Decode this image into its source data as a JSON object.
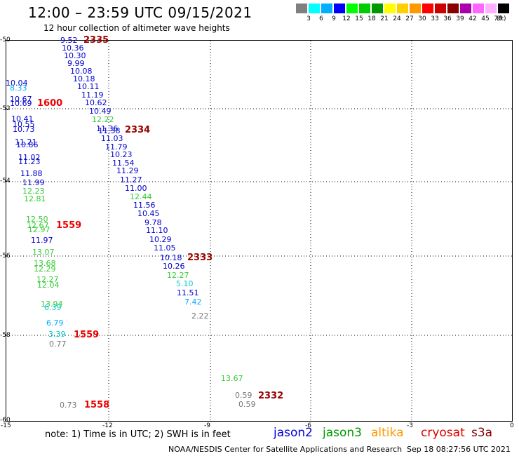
{
  "header": {
    "title": "12:00 – 23:59 UTC 09/15/2021",
    "subtitle": "12 hour collection of altimeter wave heights"
  },
  "colorbar": {
    "unit_label": "(ft)",
    "swatches": [
      {
        "color": "#808080",
        "label": "3"
      },
      {
        "color": "#00ffff",
        "label": "6"
      },
      {
        "color": "#00b0ff",
        "label": "9"
      },
      {
        "color": "#0000ff",
        "label": "12"
      },
      {
        "color": "#00ff00",
        "label": "15"
      },
      {
        "color": "#00cc00",
        "label": "18"
      },
      {
        "color": "#009900",
        "label": "21"
      },
      {
        "color": "#ffff00",
        "label": "24"
      },
      {
        "color": "#ffd000",
        "label": "27"
      },
      {
        "color": "#ff9900",
        "label": "30"
      },
      {
        "color": "#ff0000",
        "label": "33"
      },
      {
        "color": "#cc0000",
        "label": "36"
      },
      {
        "color": "#880000",
        "label": "39"
      },
      {
        "color": "#aa00aa",
        "label": "42"
      },
      {
        "color": "#ff66ff",
        "label": "45"
      },
      {
        "color": "#ffb0ff",
        "label": "70"
      },
      {
        "color": "#000000",
        "label": ""
      }
    ]
  },
  "axes": {
    "lat_labels": [
      "-50",
      "-52",
      "-54",
      "-56",
      "-58",
      "-60"
    ],
    "lon_labels": [
      "-15",
      "-12",
      "-9",
      "-6",
      "-3",
      "0"
    ]
  },
  "footer": {
    "note": "note:  1) Time is in UTC; 2) SWH is in feet",
    "satellites": [
      {
        "name": "jason2",
        "color": "#0000dd"
      },
      {
        "name": "jason3",
        "color": "#009900"
      },
      {
        "name": "altika",
        "color": "#ff9900"
      },
      {
        "name": "cryosat",
        "color": "#dd0000"
      },
      {
        "name": "s3a",
        "color": "#880000"
      }
    ],
    "credit": "NOAA/NESDIS Center for Satellite Applications and Research",
    "timestamp": "Sep 18 08:27:56 UTC 2021"
  },
  "time_labels": [
    {
      "text": "2335",
      "color": "#990000"
    },
    {
      "text": "1600",
      "color": "#ee0000"
    },
    {
      "text": "2334",
      "color": "#990000"
    },
    {
      "text": "1559",
      "color": "#ee0000"
    },
    {
      "text": "2333",
      "color": "#990000"
    },
    {
      "text": "1559",
      "color": "#ee0000"
    },
    {
      "text": "2332",
      "color": "#990000"
    },
    {
      "text": "1558",
      "color": "#ee0000"
    }
  ],
  "observations": [
    {
      "v": "9.52",
      "c": "#0000cc"
    },
    {
      "v": "10.36",
      "c": "#0000cc"
    },
    {
      "v": "10.30",
      "c": "#0000cc"
    },
    {
      "v": "9.99",
      "c": "#0000cc"
    },
    {
      "v": "10.08",
      "c": "#0000cc"
    },
    {
      "v": "10.18",
      "c": "#0000cc"
    },
    {
      "v": "10.11",
      "c": "#0000cc"
    },
    {
      "v": "11.19",
      "c": "#0000cc"
    },
    {
      "v": "10.62",
      "c": "#0000cc"
    },
    {
      "v": "10.49",
      "c": "#0000cc"
    },
    {
      "v": "12.22",
      "c": "#33cc33"
    },
    {
      "v": "11.36",
      "c": "#0000cc"
    },
    {
      "v": "11.38",
      "c": "#0000cc"
    },
    {
      "v": "11.03",
      "c": "#0000cc"
    },
    {
      "v": "11.79",
      "c": "#0000cc"
    },
    {
      "v": "10.23",
      "c": "#0000cc"
    },
    {
      "v": "11.54",
      "c": "#0000cc"
    },
    {
      "v": "11.29",
      "c": "#0000cc"
    },
    {
      "v": "11.27",
      "c": "#0000cc"
    },
    {
      "v": "11.00",
      "c": "#0000cc"
    },
    {
      "v": "12.44",
      "c": "#33cc33"
    },
    {
      "v": "11.56",
      "c": "#0000cc"
    },
    {
      "v": "10.45",
      "c": "#0000cc"
    },
    {
      "v": "9.78",
      "c": "#0000cc"
    },
    {
      "v": "11.10",
      "c": "#0000cc"
    },
    {
      "v": "10.29",
      "c": "#0000cc"
    },
    {
      "v": "11.05",
      "c": "#0000cc"
    },
    {
      "v": "10.18",
      "c": "#0000cc"
    },
    {
      "v": "10.26",
      "c": "#0000cc"
    },
    {
      "v": "12.27",
      "c": "#33cc33"
    },
    {
      "v": "5.10",
      "c": "#00cccc"
    },
    {
      "v": "11.51",
      "c": "#0000cc"
    },
    {
      "v": "7.42",
      "c": "#00aaff"
    },
    {
      "v": "2.22",
      "c": "#777777"
    },
    {
      "v": "10.04",
      "c": "#0000cc"
    },
    {
      "v": "8.33",
      "c": "#00aaff"
    },
    {
      "v": "10.67",
      "c": "#0000cc"
    },
    {
      "v": "10.69",
      "c": "#0000cc"
    },
    {
      "v": "10.41",
      "c": "#0000cc"
    },
    {
      "v": "10.55",
      "c": "#0000cc"
    },
    {
      "v": "10.73",
      "c": "#0000cc"
    },
    {
      "v": "11.21",
      "c": "#0000cc"
    },
    {
      "v": "10.86",
      "c": "#0000cc"
    },
    {
      "v": "11.02",
      "c": "#0000cc"
    },
    {
      "v": "11.23",
      "c": "#0000cc"
    },
    {
      "v": "11.88",
      "c": "#0000cc"
    },
    {
      "v": "11.99",
      "c": "#0000cc"
    },
    {
      "v": "12.23",
      "c": "#33cc33"
    },
    {
      "v": "12.81",
      "c": "#33cc33"
    },
    {
      "v": "12.50",
      "c": "#33cc33"
    },
    {
      "v": "12.67",
      "c": "#33cc33"
    },
    {
      "v": "12.97",
      "c": "#33cc33"
    },
    {
      "v": "11.97",
      "c": "#0000cc"
    },
    {
      "v": "13.07",
      "c": "#33cc33"
    },
    {
      "v": "13.68",
      "c": "#33cc33"
    },
    {
      "v": "12.29",
      "c": "#33cc33"
    },
    {
      "v": "12.27",
      "c": "#33cc33"
    },
    {
      "v": "12.04",
      "c": "#33cc33"
    },
    {
      "v": "13.94",
      "c": "#33cc33"
    },
    {
      "v": "6.39",
      "c": "#00cccc"
    },
    {
      "v": "6.79",
      "c": "#00aaff"
    },
    {
      "v": "3.39",
      "c": "#00cccc"
    },
    {
      "v": "0.77",
      "c": "#777777"
    },
    {
      "v": "0.73",
      "c": "#777777"
    },
    {
      "v": "13.67",
      "c": "#33cc33"
    },
    {
      "v": "0.59",
      "c": "#777777"
    },
    {
      "v": "0.59",
      "c": "#777777"
    }
  ]
}
